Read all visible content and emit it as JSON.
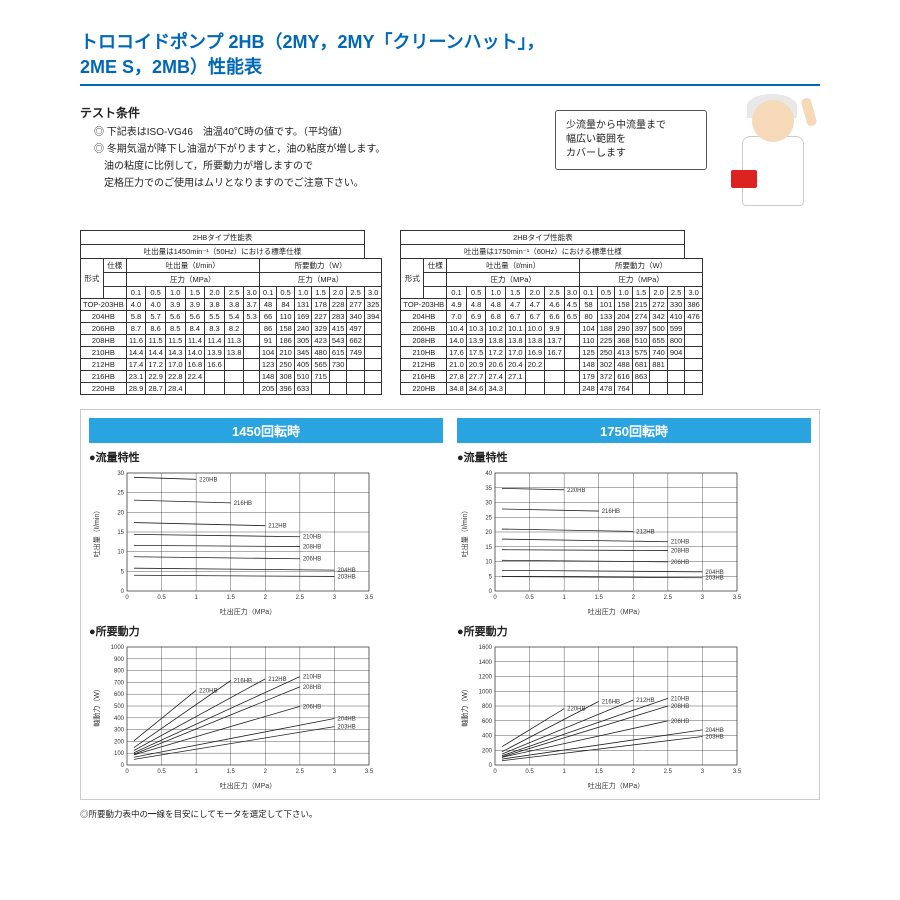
{
  "title1": "トロコイドポンプ 2HB（2MY，2MY「クリーンハット」，",
  "title2": "2ME S，2MB）性能表",
  "cond_head": "テスト条件",
  "cond_l1": "◎ 下記表はISO-VG46　油温40℃時の値です。（平均値）",
  "cond_l2": "◎ 冬期気温が降下し油温が下がりますと，油の粘度が増します。",
  "cond_l3": "　油の粘度に比例して，所要動力が増しますので",
  "cond_l4": "　定格圧力でのご使用はムリとなりますのでご注意下さい。",
  "balloon_l1": "少流量から中流量まで",
  "balloon_l2": "幅広い範囲を",
  "balloon_l3": "カバーします",
  "t1_title": "2HBタイプ性能表",
  "t1_sub": "吐出量は1450min⁻¹（50Hz）における標準仕様",
  "t2_sub": "吐出量は1750min⁻¹（60Hz）における標準仕様",
  "spec": "仕様",
  "disch": "吐出量（ℓ/min）",
  "power": "所要動力（W）",
  "press": "圧力（MPa）",
  "form": "形式",
  "cols": [
    "0.1",
    "0.5",
    "1.0",
    "1.5",
    "2.0",
    "2.5",
    "3.0"
  ],
  "t1_rows": [
    [
      "TOP-203HB",
      "4.0",
      "4.0",
      "3.9",
      "3.9",
      "3.8",
      "3.8",
      "3.7",
      "48",
      "84",
      "131",
      "178",
      "228",
      "277",
      "325"
    ],
    [
      "204HB",
      "5.8",
      "5.7",
      "5.6",
      "5.6",
      "5.5",
      "5.4",
      "5.3",
      "66",
      "110",
      "169",
      "227",
      "283",
      "340",
      "394"
    ],
    [
      "206HB",
      "8.7",
      "8.6",
      "8.5",
      "8.4",
      "8.3",
      "8.2",
      "",
      "86",
      "158",
      "240",
      "329",
      "415",
      "497",
      ""
    ],
    [
      "208HB",
      "11.6",
      "11.5",
      "11.5",
      "11.4",
      "11.4",
      "11.3",
      "",
      "91",
      "186",
      "305",
      "423",
      "543",
      "662",
      ""
    ],
    [
      "210HB",
      "14.4",
      "14.4",
      "14.3",
      "14.0",
      "13.9",
      "13.8",
      "",
      "104",
      "210",
      "345",
      "480",
      "615",
      "749",
      ""
    ],
    [
      "212HB",
      "17.4",
      "17.2",
      "17.0",
      "16.8",
      "16.6",
      "",
      "",
      "123",
      "250",
      "405",
      "565",
      "730",
      "",
      ""
    ],
    [
      "216HB",
      "23.1",
      "22.9",
      "22.8",
      "22.4",
      "",
      "",
      "",
      "148",
      "308",
      "510",
      "715",
      "",
      "",
      ""
    ],
    [
      "220HB",
      "28.9",
      "28.7",
      "28.4",
      "",
      "",
      "",
      "",
      "205",
      "396",
      "633",
      "",
      "",
      "",
      ""
    ]
  ],
  "t2_rows": [
    [
      "TOP-203HB",
      "4.9",
      "4.8",
      "4.8",
      "4.7",
      "4.7",
      "4.6",
      "4.5",
      "58",
      "101",
      "158",
      "215",
      "272",
      "330",
      "386"
    ],
    [
      "204HB",
      "7.0",
      "6.9",
      "6.8",
      "6.7",
      "6.7",
      "6.6",
      "6.5",
      "80",
      "133",
      "204",
      "274",
      "342",
      "410",
      "476"
    ],
    [
      "206HB",
      "10.4",
      "10.3",
      "10.2",
      "10.1",
      "10.0",
      "9.9",
      "",
      "104",
      "188",
      "290",
      "397",
      "500",
      "599",
      ""
    ],
    [
      "208HB",
      "14.0",
      "13.9",
      "13.8",
      "13.8",
      "13.8",
      "13.7",
      "",
      "110",
      "225",
      "368",
      "510",
      "655",
      "800",
      ""
    ],
    [
      "210HB",
      "17.6",
      "17.5",
      "17.2",
      "17.0",
      "16.9",
      "16.7",
      "",
      "125",
      "250",
      "413",
      "575",
      "740",
      "904",
      ""
    ],
    [
      "212HB",
      "21.0",
      "20.9",
      "20.6",
      "20.4",
      "20.2",
      "",
      "",
      "148",
      "302",
      "488",
      "681",
      "881",
      "",
      ""
    ],
    [
      "216HB",
      "27.8",
      "27.7",
      "27.4",
      "27.1",
      "",
      "",
      "",
      "179",
      "372",
      "616",
      "863",
      "",
      "",
      ""
    ],
    [
      "220HB",
      "34.8",
      "34.6",
      "34.3",
      "",
      "",
      "",
      "",
      "248",
      "478",
      "764",
      "",
      "",
      "",
      ""
    ]
  ],
  "rpm1": "1450回転時",
  "rpm2": "1750回転時",
  "flow_t": "●流量特性",
  "pow_t": "●所要動力",
  "x_label": "吐出圧力（MPa）",
  "y_flow": "吐出量（ℓ/min）",
  "y_pow": "軸動力（W）",
  "charts": [
    {
      "xrange": [
        0,
        3.5
      ],
      "yrange": [
        0,
        30
      ],
      "yt": 5,
      "series": [
        {
          "n": "203HB",
          "d": [
            [
              0.1,
              4.0
            ],
            [
              3.0,
              3.7
            ]
          ]
        },
        {
          "n": "204HB",
          "d": [
            [
              0.1,
              5.8
            ],
            [
              3.0,
              5.3
            ]
          ]
        },
        {
          "n": "206HB",
          "d": [
            [
              0.1,
              8.7
            ],
            [
              2.5,
              8.2
            ]
          ]
        },
        {
          "n": "208HB",
          "d": [
            [
              0.1,
              11.6
            ],
            [
              2.5,
              11.3
            ]
          ]
        },
        {
          "n": "210HB",
          "d": [
            [
              0.1,
              14.4
            ],
            [
              2.5,
              13.8
            ]
          ]
        },
        {
          "n": "212HB",
          "d": [
            [
              0.1,
              17.4
            ],
            [
              2.0,
              16.6
            ]
          ]
        },
        {
          "n": "216HB",
          "d": [
            [
              0.1,
              23.1
            ],
            [
              1.5,
              22.4
            ]
          ]
        },
        {
          "n": "220HB",
          "d": [
            [
              0.1,
              28.9
            ],
            [
              1.0,
              28.4
            ]
          ]
        }
      ]
    },
    {
      "xrange": [
        0,
        3.5
      ],
      "yrange": [
        0,
        40
      ],
      "yt": 5,
      "series": [
        {
          "n": "203HB",
          "d": [
            [
              0.1,
              4.9
            ],
            [
              3.0,
              4.5
            ]
          ]
        },
        {
          "n": "204HB",
          "d": [
            [
              0.1,
              7.0
            ],
            [
              3.0,
              6.5
            ]
          ]
        },
        {
          "n": "206HB",
          "d": [
            [
              0.1,
              10.4
            ],
            [
              2.5,
              9.9
            ]
          ]
        },
        {
          "n": "208HB",
          "d": [
            [
              0.1,
              14.0
            ],
            [
              2.5,
              13.7
            ]
          ]
        },
        {
          "n": "210HB",
          "d": [
            [
              0.1,
              17.6
            ],
            [
              2.5,
              16.7
            ]
          ]
        },
        {
          "n": "212HB",
          "d": [
            [
              0.1,
              21.0
            ],
            [
              2.0,
              20.2
            ]
          ]
        },
        {
          "n": "216HB",
          "d": [
            [
              0.1,
              27.8
            ],
            [
              1.5,
              27.1
            ]
          ]
        },
        {
          "n": "220HB",
          "d": [
            [
              0.1,
              34.8
            ],
            [
              1.0,
              34.3
            ]
          ]
        }
      ]
    },
    {
      "xrange": [
        0,
        3.5
      ],
      "yrange": [
        0,
        1000
      ],
      "yt": 100,
      "series": [
        {
          "n": "203HB",
          "d": [
            [
              0.1,
              48
            ],
            [
              3.0,
              325
            ]
          ]
        },
        {
          "n": "204HB",
          "d": [
            [
              0.1,
              66
            ],
            [
              3.0,
              394
            ]
          ]
        },
        {
          "n": "206HB",
          "d": [
            [
              0.1,
              86
            ],
            [
              2.5,
              497
            ]
          ]
        },
        {
          "n": "208HB",
          "d": [
            [
              0.1,
              91
            ],
            [
              2.5,
              662
            ]
          ]
        },
        {
          "n": "210HB",
          "d": [
            [
              0.1,
              104
            ],
            [
              2.5,
              749
            ]
          ]
        },
        {
          "n": "212HB",
          "d": [
            [
              0.1,
              123
            ],
            [
              2.0,
              730
            ]
          ]
        },
        {
          "n": "216HB",
          "d": [
            [
              0.1,
              148
            ],
            [
              1.5,
              715
            ]
          ]
        },
        {
          "n": "220HB",
          "d": [
            [
              0.1,
              205
            ],
            [
              1.0,
              633
            ]
          ]
        }
      ]
    },
    {
      "xrange": [
        0,
        3.5
      ],
      "yrange": [
        0,
        1600
      ],
      "yt": 200,
      "series": [
        {
          "n": "203HB",
          "d": [
            [
              0.1,
              58
            ],
            [
              3.0,
              386
            ]
          ]
        },
        {
          "n": "204HB",
          "d": [
            [
              0.1,
              80
            ],
            [
              3.0,
              476
            ]
          ]
        },
        {
          "n": "206HB",
          "d": [
            [
              0.1,
              104
            ],
            [
              2.5,
              599
            ]
          ]
        },
        {
          "n": "208HB",
          "d": [
            [
              0.1,
              110
            ],
            [
              2.5,
              800
            ]
          ]
        },
        {
          "n": "210HB",
          "d": [
            [
              0.1,
              125
            ],
            [
              2.5,
              904
            ]
          ]
        },
        {
          "n": "212HB",
          "d": [
            [
              0.1,
              148
            ],
            [
              2.0,
              881
            ]
          ]
        },
        {
          "n": "216HB",
          "d": [
            [
              0.1,
              179
            ],
            [
              1.5,
              863
            ]
          ]
        },
        {
          "n": "220HB",
          "d": [
            [
              0.1,
              248
            ],
            [
              1.0,
              764
            ]
          ]
        }
      ]
    }
  ],
  "footer_note": "◎所要動力表中の━線を目安にしてモータを選定して下さい。",
  "colors": {
    "accent": "#0068b6",
    "chart_head": "#29a4e0",
    "line": "#222222",
    "grid": "#333333",
    "bg": "#ffffff"
  }
}
